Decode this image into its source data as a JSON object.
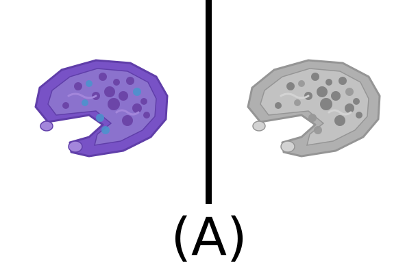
{
  "caption": "(A)",
  "panels": [
    {
      "icon": "pizza-pool-float-icon",
      "variant": "color",
      "colors": {
        "rim": "#6a40c0",
        "rim_dark": "#4f2aa0",
        "surface": "#7f63c8",
        "topping": "#5a2b9a",
        "accent": "#3a86c8",
        "shadow": "#9a7ad8"
      }
    },
    {
      "icon": "pizza-pool-float-icon",
      "variant": "grayscale",
      "colors": {
        "rim": "#a8a8a8",
        "rim_dark": "#8a8a8a",
        "surface": "#bcbcbc",
        "topping": "#6e6e6e",
        "accent": "#8c8c8c",
        "shadow": "#cfcfcf"
      }
    }
  ]
}
